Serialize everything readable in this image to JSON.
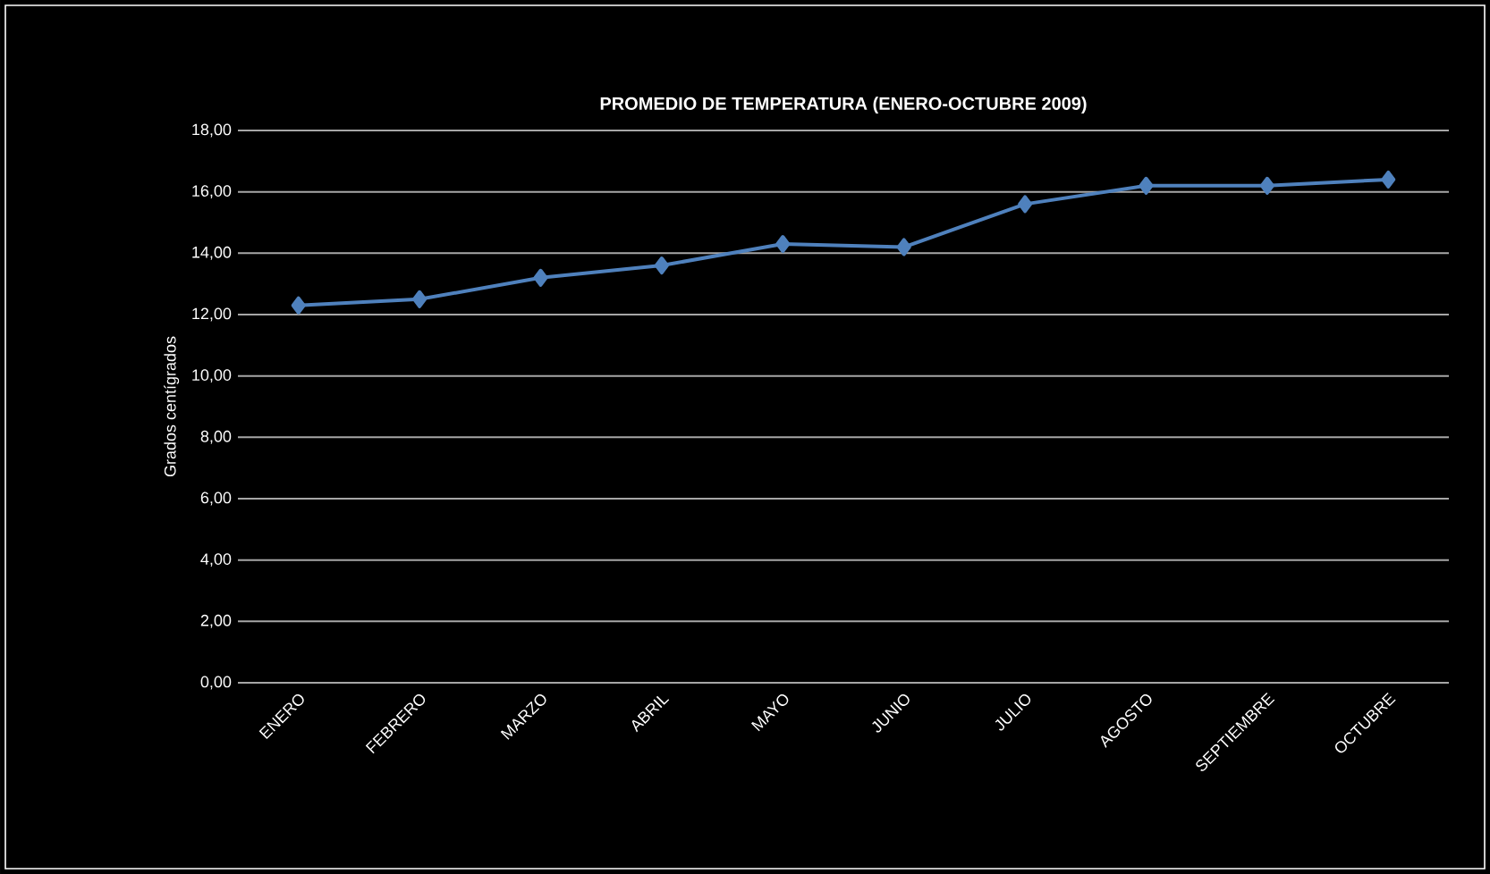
{
  "chart_data": {
    "type": "line",
    "title": "PROMEDIO DE TEMPERATURA (ENERO-OCTUBRE 2009)",
    "ylabel": "Grados centígrados",
    "categories": [
      "ENERO",
      "FEBRERO",
      "MARZO",
      "ABRIL",
      "MAYO",
      "JUNIO",
      "JULIO",
      "AGOSTO",
      "SEPTIEMBRE",
      "OCTUBRE"
    ],
    "series": [
      {
        "color": "#4f81bd",
        "values": [
          12.3,
          12.5,
          13.2,
          13.6,
          14.3,
          14.2,
          15.6,
          16.2,
          16.2,
          16.4
        ]
      }
    ],
    "ylim": [
      0,
      18
    ],
    "yticks": [
      {
        "value": 0,
        "label": "0,00"
      },
      {
        "value": 2,
        "label": "2,00"
      },
      {
        "value": 4,
        "label": "4,00"
      },
      {
        "value": 6,
        "label": "6,00"
      },
      {
        "value": 8,
        "label": "8,00"
      },
      {
        "value": 10,
        "label": "10,00"
      },
      {
        "value": 12,
        "label": "12,00"
      },
      {
        "value": 14,
        "label": "14,00"
      },
      {
        "value": 16,
        "label": "16,00"
      },
      {
        "value": 18,
        "label": "18,00"
      }
    ],
    "grid": "y",
    "marker": "diamond",
    "line_style": "solid"
  }
}
